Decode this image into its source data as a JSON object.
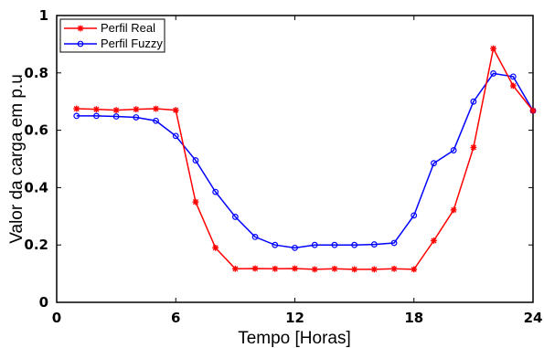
{
  "chart_data": {
    "type": "line",
    "xlabel": "Tempo [Horas]",
    "ylabel": "Valor da carga em p.u",
    "xlim": [
      0,
      24
    ],
    "ylim": [
      0,
      1
    ],
    "xticks": [
      0,
      6,
      12,
      18,
      24
    ],
    "yticks": [
      0,
      0.2,
      0.4,
      0.6,
      0.8,
      1
    ],
    "ytick_labels": [
      "0",
      "0.2",
      "0.4",
      "0.6",
      "0.8",
      "1"
    ],
    "xtick_labels": [
      "0",
      "6",
      "12",
      "18",
      "24"
    ],
    "grid": false,
    "legend_position": "top-left",
    "x": [
      1,
      2,
      3,
      4,
      5,
      6,
      7,
      8,
      9,
      10,
      11,
      12,
      13,
      14,
      15,
      16,
      17,
      18,
      19,
      20,
      21,
      22,
      23,
      24
    ],
    "series": [
      {
        "name": "Perfil Real",
        "color": "#ff0000",
        "marker": "asterisk",
        "values": [
          0.675,
          0.673,
          0.67,
          0.673,
          0.675,
          0.67,
          0.35,
          0.19,
          0.117,
          0.118,
          0.117,
          0.118,
          0.115,
          0.117,
          0.115,
          0.115,
          0.117,
          0.115,
          0.215,
          0.322,
          0.54,
          0.885,
          0.755,
          0.668
        ]
      },
      {
        "name": "Perfil Fuzzy",
        "color": "#0000ff",
        "marker": "circle",
        "values": [
          0.65,
          0.65,
          0.648,
          0.645,
          0.633,
          0.58,
          0.495,
          0.385,
          0.298,
          0.228,
          0.2,
          0.19,
          0.2,
          0.2,
          0.2,
          0.202,
          0.207,
          0.303,
          0.485,
          0.53,
          0.7,
          0.798,
          0.787,
          0.668
        ]
      }
    ]
  }
}
